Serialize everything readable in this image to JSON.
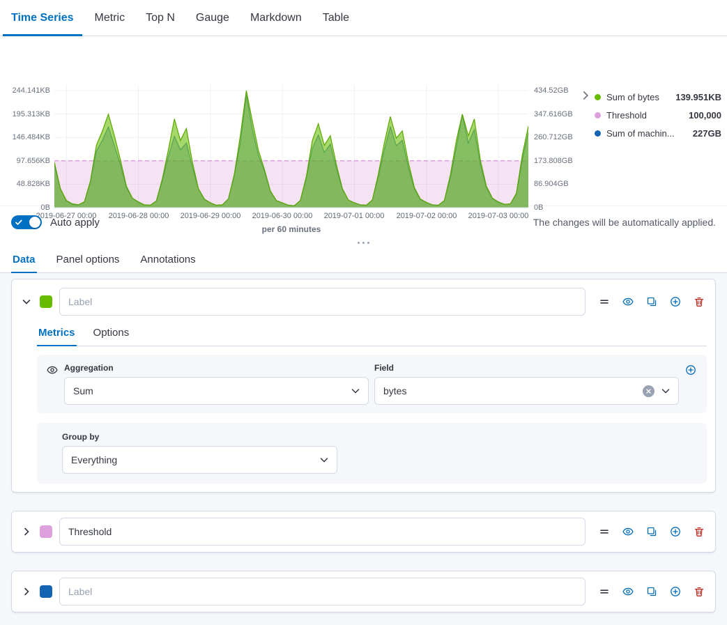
{
  "top_tabs": [
    {
      "label": "Time Series",
      "active": true
    },
    {
      "label": "Metric"
    },
    {
      "label": "Top N"
    },
    {
      "label": "Gauge"
    },
    {
      "label": "Markdown"
    },
    {
      "label": "Table"
    }
  ],
  "chart": {
    "left_axis_labels": [
      "244.141KB",
      "195.313KB",
      "146.484KB",
      "97.656KB",
      "48.828KB",
      "0B"
    ],
    "right_axis_labels": [
      "434.52GB",
      "347.616GB",
      "260.712GB",
      "173.808GB",
      "86.904GB",
      "0B"
    ],
    "x_axis_labels": [
      "2019-06-27 00:00",
      "2019-06-28 00:00",
      "2019-06-29 00:00",
      "2019-06-30 00:00",
      "2019-07-01 00:00",
      "2019-07-02 00:00",
      "2019-07-03 00:00"
    ],
    "caption": "per 60 minutes",
    "legend": [
      {
        "label": "Sum of bytes",
        "value": "139.951KB",
        "color": "#68BC00"
      },
      {
        "label": "Threshold",
        "value": "100,000",
        "color": "#DDA0DD"
      },
      {
        "label": "Sum of machin...",
        "value": "227GB",
        "color": "#1464B3"
      }
    ]
  },
  "chart_data": {
    "type": "area",
    "x_start": "2019-06-26 20:00",
    "x_step_hours": 2,
    "x_tick_indices": [
      2,
      14,
      26,
      38,
      50,
      62,
      74
    ],
    "left_axis": {
      "unit": "KB",
      "ticks": [
        244.141,
        195.313,
        146.484,
        97.656,
        48.828,
        0
      ],
      "max": 244.141
    },
    "right_axis": {
      "unit": "GB",
      "ticks": [
        434.52,
        347.616,
        260.712,
        173.808,
        86.904,
        0
      ],
      "max": 434.52
    },
    "threshold": {
      "name": "Threshold",
      "value_bytes": "100,000",
      "value_kb": 97.656,
      "color": "#DDA0DD"
    },
    "series": [
      {
        "name": "Sum of bytes",
        "axis": "left",
        "unit": "KB",
        "color": "#68BC00",
        "values": [
          95,
          40,
          15,
          8,
          6,
          12,
          55,
          130,
          160,
          195,
          150,
          100,
          45,
          20,
          12,
          6,
          5,
          14,
          60,
          120,
          185,
          140,
          165,
          95,
          40,
          18,
          10,
          5,
          6,
          18,
          70,
          150,
          244,
          180,
          120,
          80,
          35,
          15,
          10,
          5,
          4,
          15,
          65,
          140,
          175,
          130,
          150,
          90,
          40,
          16,
          10,
          6,
          5,
          16,
          70,
          135,
          190,
          145,
          160,
          95,
          42,
          18,
          11,
          6,
          5,
          15,
          68,
          140,
          195,
          150,
          185,
          100,
          45,
          20,
          12,
          7,
          8,
          30,
          110,
          170
        ]
      },
      {
        "name": "Sum of machin...",
        "axis": "right",
        "unit": "GB",
        "color": "#1464B3",
        "values": [
          160,
          70,
          25,
          12,
          10,
          20,
          95,
          210,
          250,
          300,
          230,
          160,
          75,
          35,
          20,
          10,
          9,
          25,
          100,
          190,
          265,
          215,
          240,
          150,
          70,
          30,
          18,
          9,
          10,
          32,
          120,
          240,
          420,
          290,
          195,
          135,
          60,
          26,
          17,
          9,
          7,
          27,
          110,
          220,
          270,
          205,
          235,
          145,
          68,
          28,
          18,
          10,
          9,
          28,
          115,
          215,
          300,
          230,
          250,
          150,
          70,
          30,
          19,
          10,
          9,
          26,
          110,
          225,
          345,
          240,
          290,
          160,
          75,
          34,
          20,
          12,
          14,
          50,
          180,
          280
        ]
      }
    ]
  },
  "auto_apply": {
    "label": "Auto apply",
    "hint": "The changes will be automatically applied.",
    "enabled": true
  },
  "editor_tabs": [
    {
      "label": "Data",
      "active": true
    },
    {
      "label": "Panel options"
    },
    {
      "label": "Annotations"
    }
  ],
  "series_panels": [
    {
      "color": "#68BC00",
      "label_placeholder": "Label",
      "label_value": "",
      "expanded": true,
      "tabs": [
        {
          "label": "Metrics",
          "active": true
        },
        {
          "label": "Options"
        }
      ],
      "aggregation_label": "Aggregation",
      "aggregation_value": "Sum",
      "field_label": "Field",
      "field_value": "bytes",
      "group_by_label": "Group by",
      "group_by_value": "Everything"
    },
    {
      "color": "#DDA0DD",
      "label_value": "Threshold",
      "expanded": false
    },
    {
      "color": "#1464B3",
      "label_placeholder": "Label",
      "label_value": "",
      "expanded": false
    }
  ]
}
